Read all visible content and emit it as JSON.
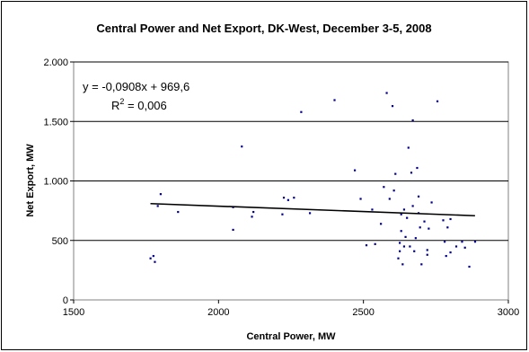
{
  "chart_data": {
    "type": "scatter",
    "title": "Central Power and Net Export, DK-West, December 3-5, 2008",
    "xlabel": "Central Power, MW",
    "ylabel": "Net Export, MW",
    "xlim": [
      1500,
      3000
    ],
    "ylim": [
      0,
      2000
    ],
    "xticks": [
      1500,
      2000,
      2500,
      3000
    ],
    "xtick_labels": [
      "1500",
      "2000",
      "2500",
      "3000"
    ],
    "yticks": [
      0,
      500,
      1000,
      1500,
      2000
    ],
    "ytick_labels": [
      "0",
      "500",
      "1.000",
      "1.500",
      "2.000"
    ],
    "grid": "horizontal",
    "point_color": "#00008b",
    "trendline": {
      "type": "linear",
      "slope": -0.0908,
      "intercept": 969.6,
      "x_range": [
        1765,
        2885
      ],
      "color": "#000000"
    },
    "annotations": {
      "equation": "y = -0,0908x + 969,6",
      "r2_prefix": "R",
      "r2_exp": "2",
      "r2_value": " = 0,006"
    },
    "points": [
      [
        1765,
        350
      ],
      [
        1775,
        370
      ],
      [
        1780,
        320
      ],
      [
        1790,
        790
      ],
      [
        1800,
        890
      ],
      [
        1860,
        740
      ],
      [
        2050,
        780
      ],
      [
        2050,
        590
      ],
      [
        2080,
        1290
      ],
      [
        2115,
        700
      ],
      [
        2120,
        740
      ],
      [
        2220,
        720
      ],
      [
        2225,
        860
      ],
      [
        2240,
        840
      ],
      [
        2260,
        860
      ],
      [
        2285,
        1580
      ],
      [
        2315,
        730
      ],
      [
        2400,
        1680
      ],
      [
        2470,
        1090
      ],
      [
        2490,
        850
      ],
      [
        2510,
        460
      ],
      [
        2530,
        760
      ],
      [
        2540,
        470
      ],
      [
        2560,
        640
      ],
      [
        2570,
        950
      ],
      [
        2580,
        1740
      ],
      [
        2590,
        850
      ],
      [
        2600,
        1630
      ],
      [
        2605,
        920
      ],
      [
        2610,
        1060
      ],
      [
        2620,
        350
      ],
      [
        2625,
        410
      ],
      [
        2625,
        480
      ],
      [
        2630,
        580
      ],
      [
        2630,
        720
      ],
      [
        2635,
        300
      ],
      [
        2640,
        450
      ],
      [
        2640,
        760
      ],
      [
        2645,
        530
      ],
      [
        2650,
        690
      ],
      [
        2655,
        1280
      ],
      [
        2660,
        450
      ],
      [
        2665,
        1070
      ],
      [
        2670,
        1510
      ],
      [
        2670,
        790
      ],
      [
        2675,
        410
      ],
      [
        2680,
        520
      ],
      [
        2685,
        1110
      ],
      [
        2690,
        870
      ],
      [
        2690,
        730
      ],
      [
        2695,
        610
      ],
      [
        2700,
        300
      ],
      [
        2710,
        660
      ],
      [
        2720,
        420
      ],
      [
        2720,
        380
      ],
      [
        2725,
        600
      ],
      [
        2735,
        820
      ],
      [
        2755,
        1670
      ],
      [
        2775,
        670
      ],
      [
        2780,
        490
      ],
      [
        2785,
        370
      ],
      [
        2790,
        610
      ],
      [
        2800,
        400
      ],
      [
        2800,
        680
      ],
      [
        2820,
        450
      ],
      [
        2840,
        490
      ],
      [
        2850,
        440
      ],
      [
        2865,
        280
      ],
      [
        2885,
        490
      ]
    ]
  }
}
